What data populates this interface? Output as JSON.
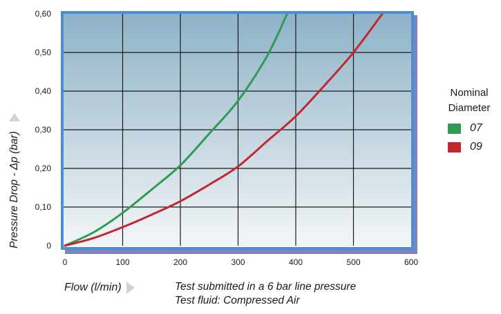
{
  "chart_data": {
    "type": "line",
    "title": "",
    "xlabel": "Flow (l/min)",
    "ylabel": "Pressure Drop - Δp (bar)",
    "xlim": [
      0,
      600
    ],
    "ylim": [
      0,
      0.6
    ],
    "x_ticks": [
      "0",
      "100",
      "200",
      "300",
      "400",
      "500",
      "600"
    ],
    "y_ticks": [
      "0",
      "0,10",
      "0,20",
      "0,30",
      "0,40",
      "0,50",
      "0,60"
    ],
    "grid": true,
    "legend_title": "Nominal Diameter",
    "legend_title_lines": [
      "Nominal",
      "Diameter"
    ],
    "legend_position": "right",
    "series": [
      {
        "name": "07",
        "color": "#2e9a52",
        "x": [
          0,
          50,
          100,
          150,
          200,
          250,
          300,
          350,
          385
        ],
        "y": [
          0,
          0.035,
          0.085,
          0.145,
          0.208,
          0.29,
          0.375,
          0.49,
          0.6
        ]
      },
      {
        "name": "09",
        "color": "#c1272d",
        "x": [
          0,
          50,
          100,
          150,
          200,
          250,
          300,
          350,
          400,
          450,
          500,
          550
        ],
        "y": [
          0,
          0.02,
          0.048,
          0.08,
          0.115,
          0.158,
          0.205,
          0.27,
          0.335,
          0.415,
          0.5,
          0.6
        ]
      }
    ],
    "notes": [
      "Test submitted in a 6 bar line pressure",
      "Test fluid: Compressed Air"
    ]
  },
  "colors": {
    "frame_border": "#4b8fd0",
    "plot_top": "#8eb2c8",
    "plot_bottom": "#f4f6f7",
    "shadow": "#7f84be",
    "gridline": "#1a1a1a"
  }
}
